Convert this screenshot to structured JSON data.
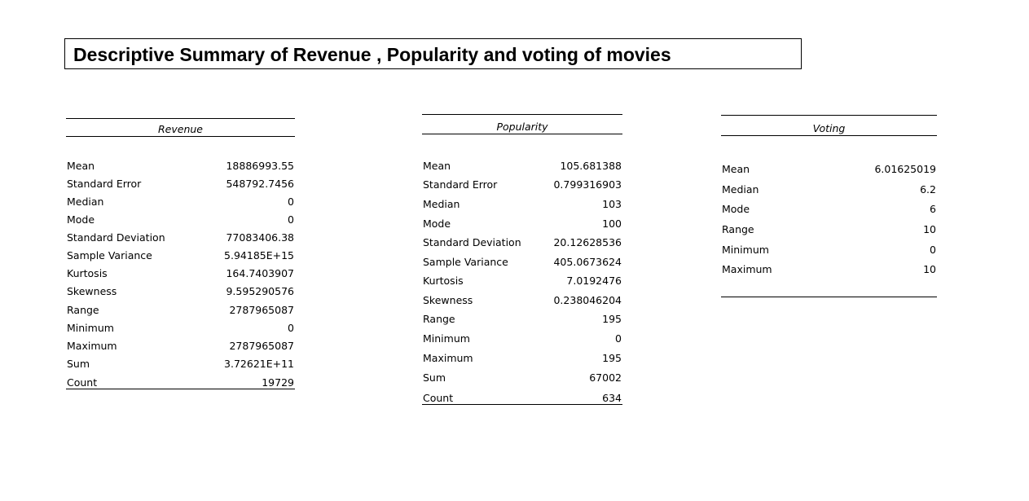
{
  "title": "Descriptive Summary of Revenue , Popularity and voting of movies",
  "tables": [
    {
      "header": "Revenue",
      "rows": [
        {
          "label": "Mean",
          "value": "18886993.55"
        },
        {
          "label": "Standard Error",
          "value": "548792.7456"
        },
        {
          "label": "Median",
          "value": "0"
        },
        {
          "label": "Mode",
          "value": "0"
        },
        {
          "label": "Standard Deviation",
          "value": "77083406.38"
        },
        {
          "label": "Sample Variance",
          "value": "5.94185E+15"
        },
        {
          "label": "Kurtosis",
          "value": "164.7403907"
        },
        {
          "label": "Skewness",
          "value": "9.595290576"
        },
        {
          "label": "Range",
          "value": "2787965087"
        },
        {
          "label": "Minimum",
          "value": "0"
        },
        {
          "label": "Maximum",
          "value": "2787965087"
        },
        {
          "label": "Sum",
          "value": "3.72621E+11"
        },
        {
          "label": "Count",
          "value": "19729"
        }
      ]
    },
    {
      "header": "Popularity",
      "rows": [
        {
          "label": "Mean",
          "value": "105.681388"
        },
        {
          "label": "Standard Error",
          "value": "0.799316903"
        },
        {
          "label": "Median",
          "value": "103"
        },
        {
          "label": "Mode",
          "value": "100"
        },
        {
          "label": "Standard Deviation",
          "value": "20.12628536"
        },
        {
          "label": "Sample Variance",
          "value": "405.0673624"
        },
        {
          "label": "Kurtosis",
          "value": "7.0192476"
        },
        {
          "label": "Skewness",
          "value": "0.238046204"
        },
        {
          "label": "Range",
          "value": "195"
        },
        {
          "label": "Minimum",
          "value": "0"
        },
        {
          "label": "Maximum",
          "value": "195"
        },
        {
          "label": "Sum",
          "value": "67002"
        },
        {
          "label": "Count",
          "value": "634"
        }
      ]
    },
    {
      "header": "Voting",
      "rows": [
        {
          "label": "Mean",
          "value": "6.01625019"
        },
        {
          "label": "Median",
          "value": "6.2"
        },
        {
          "label": "Mode",
          "value": "6"
        },
        {
          "label": "Range",
          "value": "10"
        },
        {
          "label": "Minimum",
          "value": "0"
        },
        {
          "label": "Maximum",
          "value": "10"
        }
      ]
    }
  ]
}
